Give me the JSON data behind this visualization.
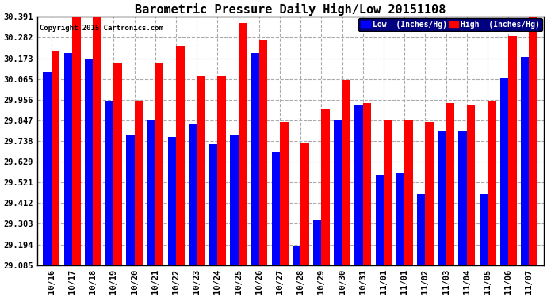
{
  "title": "Barometric Pressure Daily High/Low 20151108",
  "copyright": "Copyright 2015 Cartronics.com",
  "legend_low": "Low  (Inches/Hg)",
  "legend_high": "High  (Inches/Hg)",
  "categories": [
    "10/16",
    "10/17",
    "10/18",
    "10/19",
    "10/20",
    "10/21",
    "10/22",
    "10/23",
    "10/24",
    "10/25",
    "10/26",
    "10/27",
    "10/28",
    "10/29",
    "10/30",
    "10/31",
    "11/01",
    "11/01",
    "11/02",
    "11/03",
    "11/04",
    "11/05",
    "11/06",
    "11/07"
  ],
  "low_values": [
    30.1,
    30.2,
    30.17,
    29.95,
    29.77,
    29.85,
    29.76,
    29.83,
    29.72,
    29.77,
    30.2,
    29.68,
    29.19,
    29.32,
    29.85,
    29.93,
    29.56,
    29.57,
    29.46,
    29.79,
    29.79,
    29.46,
    30.07,
    30.18
  ],
  "high_values": [
    30.21,
    30.39,
    30.39,
    30.15,
    29.95,
    30.15,
    30.24,
    30.08,
    30.08,
    30.36,
    30.27,
    29.84,
    29.73,
    29.91,
    30.06,
    29.94,
    29.85,
    29.85,
    29.84,
    29.94,
    29.93,
    29.95,
    30.29,
    30.39
  ],
  "ylim_min": 29.085,
  "ylim_max": 30.391,
  "yticks": [
    29.085,
    29.194,
    29.303,
    29.412,
    29.521,
    29.629,
    29.738,
    29.847,
    29.956,
    30.065,
    30.173,
    30.282,
    30.391
  ],
  "low_color": "#0000ff",
  "high_color": "#ff0000",
  "bg_color": "#ffffff",
  "grid_color": "#aaaaaa",
  "title_fontsize": 11,
  "tick_fontsize": 7.5,
  "bar_width": 0.4
}
